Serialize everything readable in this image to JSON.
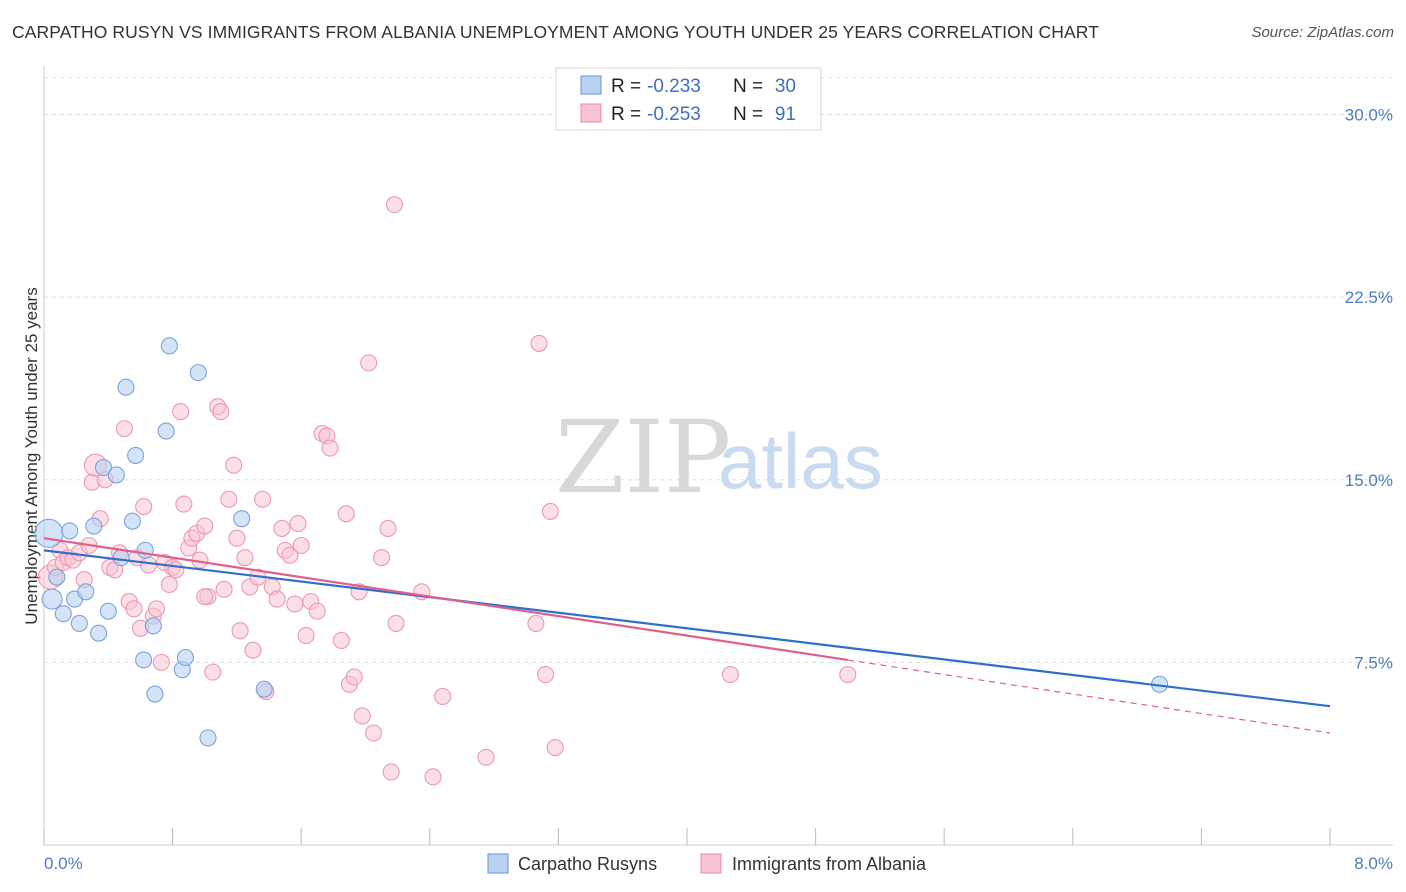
{
  "title": "CARPATHO RUSYN VS IMMIGRANTS FROM ALBANIA UNEMPLOYMENT AMONG YOUTH UNDER 25 YEARS CORRELATION CHART",
  "source": "Source: ZipAtlas.com",
  "watermark": {
    "zip": "ZIP",
    "atlas": "atlas"
  },
  "legend": {
    "row1": {
      "r_label": "R =",
      "r_value": "-0.233",
      "n_label": "N =",
      "n_value": "30"
    },
    "row2": {
      "r_label": "R =",
      "r_value": "-0.253",
      "n_label": "N =",
      "n_value": "91"
    }
  },
  "bottom_legend": {
    "series1": "Carpatho Rusyns",
    "series2": "Immigrants from Albania"
  },
  "colors": {
    "blue_fill": "#b8d1f0",
    "blue_stroke": "#7aa4dc",
    "blue_line": "#2f6fcc",
    "pink_fill": "#f8c4d4",
    "pink_stroke": "#ee98b3",
    "pink_line": "#e0608c",
    "grid": "#dddddd",
    "axis_text": "#4a7cc7"
  },
  "chart_data": {
    "type": "scatter",
    "title": "CARPATHO RUSYN VS IMMIGRANTS FROM ALBANIA UNEMPLOYMENT AMONG YOUTH UNDER 25 YEARS CORRELATION CHART",
    "xlabel": "",
    "ylabel": "Unemployment Among Youth under 25 years",
    "xlim": [
      0,
      8.0
    ],
    "ylim": [
      0,
      31.5
    ],
    "x_tick_labels": [
      "0.0%",
      "8.0%"
    ],
    "y_ticks": [
      7.5,
      15.0,
      22.5,
      30.0
    ],
    "y_tick_labels": [
      "7.5%",
      "15.0%",
      "22.5%",
      "30.0%"
    ],
    "series": [
      {
        "name": "Carpatho Rusyns",
        "R": -0.233,
        "N": 30,
        "trend": {
          "x": [
            0,
            8.0
          ],
          "y": [
            12.1,
            5.7
          ]
        },
        "points": [
          [
            0.03,
            12.8,
            14
          ],
          [
            0.05,
            10.1,
            10
          ],
          [
            0.08,
            11.0,
            8
          ],
          [
            0.12,
            9.5,
            8
          ],
          [
            0.16,
            12.9,
            8
          ],
          [
            0.19,
            10.1,
            8
          ],
          [
            0.22,
            9.1,
            8
          ],
          [
            0.26,
            10.4,
            8
          ],
          [
            0.31,
            13.1,
            8
          ],
          [
            0.34,
            8.7,
            8
          ],
          [
            0.37,
            15.5,
            8
          ],
          [
            0.4,
            9.6,
            8
          ],
          [
            0.45,
            15.2,
            8
          ],
          [
            0.48,
            11.8,
            8
          ],
          [
            0.51,
            18.8,
            8
          ],
          [
            0.55,
            13.3,
            8
          ],
          [
            0.57,
            16.0,
            8
          ],
          [
            0.62,
            7.6,
            8
          ],
          [
            0.63,
            12.1,
            8
          ],
          [
            0.68,
            9.0,
            8
          ],
          [
            0.69,
            6.2,
            8
          ],
          [
            0.76,
            17.0,
            8
          ],
          [
            0.78,
            20.5,
            8
          ],
          [
            0.86,
            7.2,
            8
          ],
          [
            0.88,
            7.7,
            8
          ],
          [
            0.96,
            19.4,
            8
          ],
          [
            1.02,
            4.4,
            8
          ],
          [
            1.23,
            13.4,
            8
          ],
          [
            1.37,
            6.4,
            8
          ],
          [
            6.94,
            6.6,
            8
          ]
        ]
      },
      {
        "name": "Immigrants from Albania",
        "R": -0.253,
        "N": 91,
        "trend": {
          "x": [
            0,
            5.0
          ],
          "y": [
            12.6,
            7.6
          ]
        },
        "trend_dashed": {
          "x": [
            5.0,
            8.0
          ],
          "y": [
            7.6,
            4.6
          ]
        },
        "points": [
          [
            0.04,
            11.0,
            12
          ],
          [
            0.07,
            11.4,
            8
          ],
          [
            0.1,
            12.1,
            8
          ],
          [
            0.12,
            11.6,
            8
          ],
          [
            0.15,
            11.8,
            8
          ],
          [
            0.18,
            11.7,
            8
          ],
          [
            0.22,
            12.0,
            8
          ],
          [
            0.25,
            10.9,
            8
          ],
          [
            0.28,
            12.3,
            8
          ],
          [
            0.3,
            14.9,
            8
          ],
          [
            0.32,
            15.6,
            11
          ],
          [
            0.35,
            13.4,
            8
          ],
          [
            0.38,
            15.0,
            8
          ],
          [
            0.41,
            11.4,
            8
          ],
          [
            0.44,
            11.3,
            8
          ],
          [
            0.47,
            12.0,
            8
          ],
          [
            0.5,
            17.1,
            8
          ],
          [
            0.53,
            10.0,
            8
          ],
          [
            0.56,
            9.7,
            8
          ],
          [
            0.58,
            11.8,
            8
          ],
          [
            0.6,
            8.9,
            8
          ],
          [
            0.62,
            13.9,
            8
          ],
          [
            0.65,
            11.5,
            8
          ],
          [
            0.68,
            9.4,
            8
          ],
          [
            0.7,
            9.7,
            8
          ],
          [
            0.73,
            7.5,
            8
          ],
          [
            0.75,
            11.6,
            8
          ],
          [
            0.78,
            10.7,
            8
          ],
          [
            0.8,
            11.4,
            8
          ],
          [
            0.82,
            11.3,
            8
          ],
          [
            0.85,
            17.8,
            8
          ],
          [
            0.87,
            14.0,
            8
          ],
          [
            0.9,
            12.2,
            8
          ],
          [
            0.92,
            12.6,
            8
          ],
          [
            0.95,
            12.8,
            8
          ],
          [
            0.97,
            11.7,
            8
          ],
          [
            1.0,
            13.1,
            8
          ],
          [
            1.02,
            10.2,
            8
          ],
          [
            1.05,
            7.1,
            8
          ],
          [
            1.08,
            18.0,
            8
          ],
          [
            1.1,
            17.8,
            8
          ],
          [
            1.12,
            10.5,
            8
          ],
          [
            1.15,
            14.2,
            8
          ],
          [
            1.18,
            15.6,
            8
          ],
          [
            1.2,
            12.6,
            8
          ],
          [
            1.22,
            8.8,
            8
          ],
          [
            1.25,
            11.8,
            8
          ],
          [
            1.28,
            10.6,
            8
          ],
          [
            1.3,
            8.0,
            8
          ],
          [
            1.33,
            11.0,
            8
          ],
          [
            1.36,
            14.2,
            8
          ],
          [
            1.38,
            6.3,
            8
          ],
          [
            1.42,
            10.6,
            8
          ],
          [
            1.45,
            10.1,
            8
          ],
          [
            1.48,
            13.0,
            8
          ],
          [
            1.5,
            12.1,
            8
          ],
          [
            1.53,
            11.9,
            8
          ],
          [
            1.56,
            9.9,
            8
          ],
          [
            1.58,
            13.2,
            8
          ],
          [
            1.6,
            12.3,
            8
          ],
          [
            1.63,
            8.6,
            8
          ],
          [
            1.66,
            10.0,
            8
          ],
          [
            1.7,
            9.6,
            8
          ],
          [
            1.73,
            16.9,
            8
          ],
          [
            1.76,
            16.8,
            8
          ],
          [
            1.78,
            16.3,
            8
          ],
          [
            1.85,
            8.4,
            8
          ],
          [
            1.88,
            13.6,
            8
          ],
          [
            1.9,
            6.6,
            8
          ],
          [
            1.93,
            6.9,
            8
          ],
          [
            1.96,
            10.4,
            8
          ],
          [
            1.98,
            5.3,
            8
          ],
          [
            2.02,
            19.8,
            8
          ],
          [
            2.05,
            4.6,
            8
          ],
          [
            2.1,
            11.8,
            8
          ],
          [
            2.14,
            13.0,
            8
          ],
          [
            2.16,
            3.0,
            8
          ],
          [
            2.19,
            9.1,
            8
          ],
          [
            2.18,
            26.3,
            8
          ],
          [
            2.35,
            10.4,
            8
          ],
          [
            2.42,
            2.8,
            8
          ],
          [
            2.48,
            6.1,
            8
          ],
          [
            2.75,
            3.6,
            8
          ],
          [
            3.06,
            9.1,
            8
          ],
          [
            3.08,
            20.6,
            8
          ],
          [
            3.12,
            7.0,
            8
          ],
          [
            3.15,
            13.7,
            8
          ],
          [
            3.18,
            4.0,
            8
          ],
          [
            4.27,
            7.0,
            8
          ],
          [
            5.0,
            7.0,
            8
          ],
          [
            1.0,
            10.2,
            8
          ]
        ]
      }
    ]
  }
}
